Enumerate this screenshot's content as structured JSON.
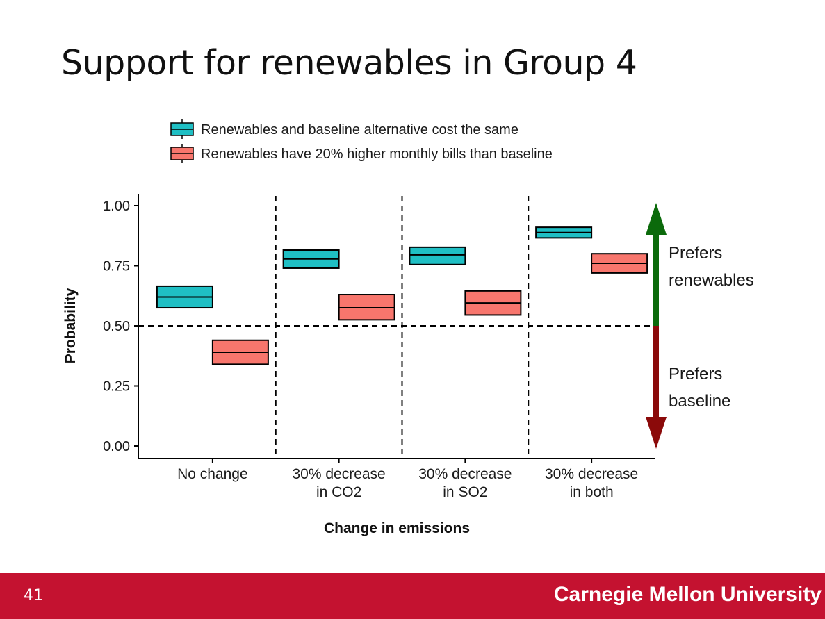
{
  "slide": {
    "title": "Support for renewables in Group 4",
    "number": "41",
    "footer_text": "Carnegie Mellon University",
    "footer_color": "#c41230"
  },
  "chart_data": {
    "type": "boxplot",
    "title": "",
    "xlabel": "Change in emissions",
    "ylabel": "Probability",
    "ylim": [
      0,
      1
    ],
    "yticks": [
      "0.00",
      "0.25",
      "0.50",
      "0.75",
      "1.00"
    ],
    "ytick_values": [
      0,
      0.25,
      0.5,
      0.75,
      1.0
    ],
    "categories": [
      [
        "No change"
      ],
      [
        "30% decrease",
        "in CO2"
      ],
      [
        "30% decrease",
        "in SO2"
      ],
      [
        "30% decrease",
        "in both"
      ]
    ],
    "reference_line": 0.5,
    "legend_position": "top",
    "series": [
      {
        "name": "Renewables and baseline alternative cost the same",
        "color": "#1fbfc4",
        "boxes": [
          {
            "low": 0.575,
            "median": 0.62,
            "high": 0.665
          },
          {
            "low": 0.74,
            "median": 0.778,
            "high": 0.815
          },
          {
            "low": 0.755,
            "median": 0.795,
            "high": 0.827
          },
          {
            "low": 0.866,
            "median": 0.888,
            "high": 0.91
          }
        ]
      },
      {
        "name": "Renewables have 20% higher monthly bills than baseline",
        "color": "#f8766d",
        "boxes": [
          {
            "low": 0.34,
            "median": 0.39,
            "high": 0.44
          },
          {
            "low": 0.525,
            "median": 0.575,
            "high": 0.63
          },
          {
            "low": 0.545,
            "median": 0.595,
            "high": 0.645
          },
          {
            "low": 0.72,
            "median": 0.76,
            "high": 0.8
          }
        ]
      }
    ],
    "annotations": [
      {
        "label_lines": [
          "Prefers",
          "renewables"
        ],
        "direction": "up",
        "color": "#0b6a0b"
      },
      {
        "label_lines": [
          "Prefers",
          "baseline"
        ],
        "direction": "down",
        "color": "#8b0a0a"
      }
    ]
  }
}
